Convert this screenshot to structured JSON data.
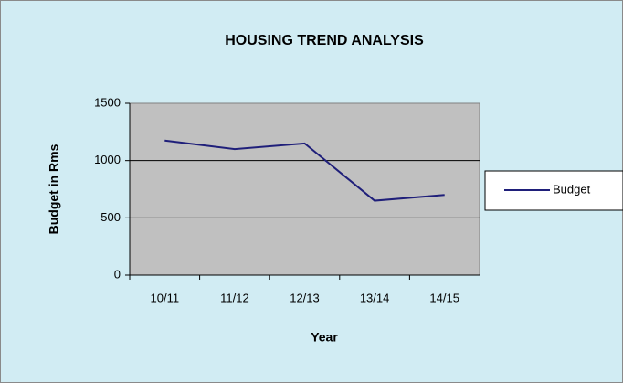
{
  "chart_data": {
    "type": "line",
    "title": "HOUSING TREND ANALYSIS",
    "x_label": "Year",
    "y_label": "Budget in Rms",
    "categories": [
      "10/11",
      "11/12",
      "12/13",
      "13/14",
      "14/15"
    ],
    "series": [
      {
        "name": "Budget",
        "color": "#1f1f7a",
        "values": [
          1175,
          1100,
          1150,
          650,
          700
        ]
      }
    ],
    "ylim": [
      0,
      1500
    ],
    "yticks": [
      0,
      500,
      1000,
      1500
    ],
    "grid": true,
    "legend": "right"
  }
}
